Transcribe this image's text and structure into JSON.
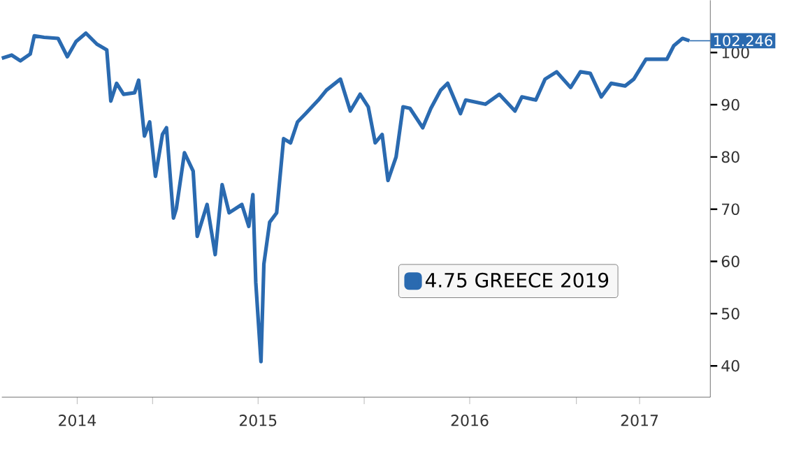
{
  "chart_data": {
    "type": "line",
    "x": [
      "2014-04-16",
      "2014-05-03",
      "2014-05-18",
      "2014-06-04",
      "2014-06-11",
      "2014-06-28",
      "2014-07-22",
      "2014-08-07",
      "2014-08-22",
      "2014-09-08",
      "2014-09-27",
      "2014-10-14",
      "2014-10-21",
      "2014-10-31",
      "2014-11-12",
      "2014-12-01",
      "2014-12-08",
      "2014-12-18",
      "2014-12-27",
      "2015-01-06",
      "2015-01-18",
      "2015-01-25",
      "2015-02-06",
      "2015-02-11",
      "2015-02-25",
      "2015-03-12",
      "2015-03-19",
      "2015-04-05",
      "2015-04-19",
      "2015-05-01",
      "2015-05-13",
      "2015-06-04",
      "2015-06-16",
      "2015-06-23",
      "2015-06-28",
      "2015-07-07",
      "2015-07-12",
      "2015-07-22",
      "2015-08-03",
      "2015-08-15",
      "2015-08-27",
      "2015-09-08",
      "2015-09-22",
      "2015-10-14",
      "2015-10-28",
      "2015-11-21",
      "2015-12-08",
      "2015-12-25",
      "2016-01-08",
      "2016-01-20",
      "2016-02-01",
      "2016-02-11",
      "2016-02-25",
      "2016-03-08",
      "2016-03-20",
      "2016-04-11",
      "2016-04-25",
      "2016-05-12",
      "2016-05-24",
      "2016-06-15",
      "2016-06-24",
      "2016-07-28",
      "2016-08-21",
      "2016-09-17",
      "2016-09-29",
      "2016-10-23",
      "2016-11-08",
      "2016-11-28",
      "2016-12-22",
      "2017-01-08",
      "2017-01-25",
      "2017-02-13",
      "2017-03-02",
      "2017-03-26",
      "2017-04-10",
      "2017-05-01",
      "2017-05-20",
      "2017-06-06",
      "2017-06-18",
      "2017-07-03",
      "2017-07-15"
    ],
    "series": [
      {
        "name": "4.75 GREECE 2019",
        "color": "#2a6ab0",
        "values": [
          98.9,
          99.5,
          98.4,
          99.7,
          103.2,
          102.9,
          102.7,
          99.2,
          102.1,
          103.7,
          101.6,
          100.5,
          90.7,
          94.1,
          92,
          92.3,
          94.7,
          84,
          86.7,
          76.3,
          84.3,
          85.6,
          68.3,
          70.1,
          80.8,
          77.3,
          64.8,
          70.9,
          61.3,
          74.7,
          69.3,
          70.9,
          66.7,
          72.8,
          56,
          40.8,
          59.5,
          67.5,
          69.3,
          83.5,
          82.7,
          86.7,
          88.3,
          90.9,
          92.8,
          94.9,
          88.8,
          92,
          89.6,
          82.7,
          84.3,
          75.5,
          80,
          89.6,
          89.3,
          85.6,
          89.3,
          92.8,
          94.1,
          88.3,
          90.9,
          90.1,
          92,
          88.8,
          91.5,
          90.9,
          94.9,
          96.3,
          93.3,
          96.3,
          96,
          91.5,
          94.1,
          93.6,
          94.9,
          98.7,
          98.7,
          98.7,
          101.3,
          102.7,
          102.246
        ]
      }
    ],
    "xlim": [
      "2014-04-16",
      "2017-08-20"
    ],
    "xticks": [
      {
        "value": "2014-08-24",
        "label": "2014"
      },
      {
        "value": "2015-01-01",
        "label": null
      },
      {
        "value": "2015-07-02",
        "label": "2015"
      },
      {
        "value": "2016-01-01",
        "label": null
      },
      {
        "value": "2016-07-01",
        "label": "2016"
      },
      {
        "value": "2017-01-01",
        "label": null
      },
      {
        "value": "2017-04-20",
        "label": "2017"
      }
    ],
    "ylim": [
      34,
      110
    ],
    "yticks": [
      40,
      50,
      60,
      70,
      80,
      90,
      100
    ],
    "legend": "bottom right",
    "annotations": [
      {
        "text": "102.246",
        "x": "2017-07-15",
        "y": 102.246
      }
    ]
  }
}
